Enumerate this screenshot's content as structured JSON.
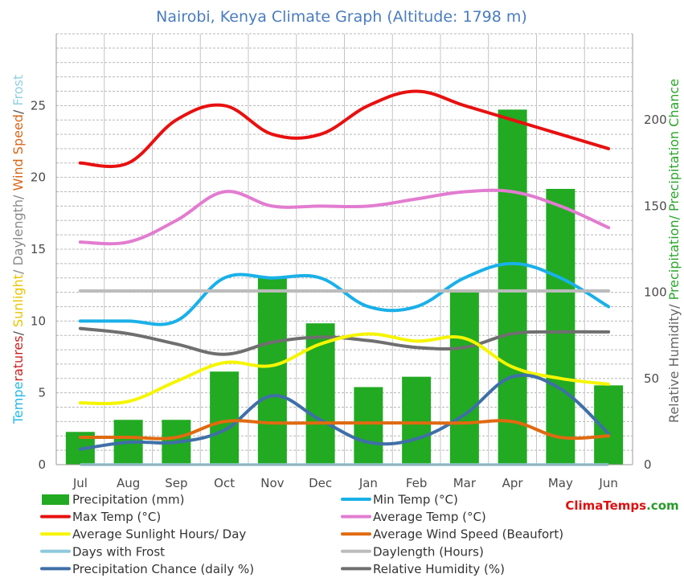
{
  "chart_data": {
    "type": "bar+line",
    "title": "Nairobi, Kenya Climate Graph (Altitude: 1798 m)",
    "categories": [
      "Jul",
      "Aug",
      "Sep",
      "Oct",
      "Nov",
      "Dec",
      "Jan",
      "Feb",
      "Mar",
      "Apr",
      "May",
      "Jun"
    ],
    "left_axis": {
      "ylim": [
        0,
        30
      ],
      "ticks": [
        "0",
        "5",
        "10",
        "15",
        "20",
        "25"
      ],
      "label_parts": [
        {
          "text": "Temperatures",
          "color": "#23b7e5",
          "base": "Tempe",
          "accent": "ratures",
          "accent_color": "#cc2222"
        },
        {
          "text": "/ ",
          "color": "#555555"
        },
        {
          "text": "Sunlight",
          "color": "#e8c400"
        },
        {
          "text": "/ Daylength/ ",
          "color": "#888888"
        },
        {
          "text": "Wind Speed",
          "color": "#d9661a"
        },
        {
          "text": "/ ",
          "color": "#555555"
        },
        {
          "text": "Frost",
          "color": "#8fd0e0"
        }
      ]
    },
    "right_axis": {
      "ylim": [
        0,
        250
      ],
      "ticks": [
        "0",
        "50",
        "100",
        "150",
        "200"
      ],
      "label_parts": [
        {
          "text": "Relative Humidity/ ",
          "color": "#666666"
        },
        {
          "text": "Precipitation/ Precipitation Chance",
          "color": "#2aa52a"
        }
      ]
    },
    "bars": {
      "name": "Precipitation (mm)",
      "color": "#22aa22",
      "values": [
        19,
        26,
        26,
        54,
        109,
        82,
        45,
        51,
        100,
        206,
        160,
        46
      ]
    },
    "series": [
      {
        "name": "Max Temp (°C)",
        "color": "#e81010",
        "axis": "left",
        "values": [
          21,
          21,
          24,
          25,
          23,
          23,
          25,
          26,
          25,
          24,
          23,
          22
        ]
      },
      {
        "name": "Average Temp (°C)",
        "color": "#e27cd0",
        "axis": "left",
        "values": [
          15.5,
          15.5,
          17,
          19,
          18,
          18,
          18,
          18.5,
          19,
          19,
          18,
          16.5
        ]
      },
      {
        "name": "Min Temp (°C)",
        "color": "#1ab0e8",
        "axis": "left",
        "values": [
          10,
          10,
          10,
          13,
          13,
          13,
          11,
          11,
          13,
          14,
          13,
          11
        ]
      },
      {
        "name": "Daylength (Hours)",
        "color": "#bcbcbc",
        "axis": "left",
        "values": [
          12.1,
          12.1,
          12.1,
          12.1,
          12.1,
          12.1,
          12.1,
          12.1,
          12.1,
          12.1,
          12.1,
          12.1
        ]
      },
      {
        "name": "Relative Humidity (%)",
        "color": "#6f6f6f",
        "axis": "right",
        "values": [
          79,
          76,
          70,
          64,
          71,
          74,
          72,
          68,
          68,
          76,
          77,
          77
        ]
      },
      {
        "name": "Average Sunlight Hours/ Day",
        "color": "#f5f500",
        "axis": "left",
        "values": [
          4.3,
          4.4,
          5.8,
          7.1,
          6.9,
          8.4,
          9.1,
          8.6,
          8.8,
          6.8,
          6,
          5.6
        ]
      },
      {
        "name": "Precipitation Chance (daily %)",
        "color": "#3f6fa8",
        "axis": "right",
        "values": [
          9,
          13,
          13,
          20,
          40,
          26,
          13,
          15,
          29,
          51,
          44,
          18
        ]
      },
      {
        "name": "Average Wind Speed (Beaufort)",
        "color": "#e06a10",
        "axis": "left",
        "values": [
          1.9,
          1.9,
          1.9,
          3,
          2.9,
          2.9,
          2.9,
          2.9,
          2.9,
          3,
          1.9,
          2
        ]
      },
      {
        "name": "Days with Frost",
        "color": "#8ec9dc",
        "axis": "left",
        "values": [
          0,
          0,
          0,
          0,
          0,
          0,
          0,
          0,
          0,
          0,
          0,
          0
        ]
      }
    ],
    "legend": [
      {
        "label": "Precipitation (mm)",
        "color": "#22aa22",
        "kind": "bar"
      },
      {
        "label": "Min Temp (°C)",
        "color": "#1ab0e8",
        "kind": "line"
      },
      {
        "label": "Max Temp (°C)",
        "color": "#e81010",
        "kind": "line"
      },
      {
        "label": "Average Temp (°C)",
        "color": "#e27cd0",
        "kind": "line"
      },
      {
        "label": "Average Sunlight Hours/ Day",
        "color": "#f5f500",
        "kind": "line"
      },
      {
        "label": "Average Wind Speed (Beaufort)",
        "color": "#e06a10",
        "kind": "line"
      },
      {
        "label": "Days with Frost",
        "color": "#8ec9dc",
        "kind": "line"
      },
      {
        "label": "Daylength (Hours)",
        "color": "#bcbcbc",
        "kind": "line"
      },
      {
        "label": "Precipitation Chance (daily %)",
        "color": "#3f6fa8",
        "kind": "line"
      },
      {
        "label": "Relative Humidity (%)",
        "color": "#6f6f6f",
        "kind": "line"
      }
    ],
    "watermark": {
      "part1": "Clima",
      "part1_color": "#dd1111",
      "part2": "Temps",
      "part2_color": "#dd1111",
      "part3": ".com",
      "part3_color": "#2a9a2a"
    }
  }
}
